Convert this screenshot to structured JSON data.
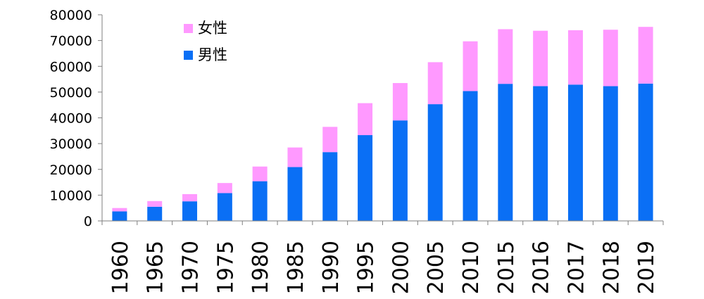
{
  "chart_data": {
    "type": "bar",
    "stacked": true,
    "categories": [
      "1960",
      "1965",
      "1970",
      "1975",
      "1980",
      "1985",
      "1990",
      "1995",
      "2000",
      "2005",
      "2010",
      "2015",
      "2016",
      "2017",
      "2018",
      "2019"
    ],
    "series": [
      {
        "name": "男性",
        "color": "#0a6ff5",
        "values": [
          3700,
          5500,
          7600,
          10800,
          15400,
          20900,
          26700,
          33300,
          39000,
          45300,
          50400,
          53200,
          52300,
          52900,
          52300,
          53300
        ]
      },
      {
        "name": "女性",
        "color": "#ff99ff",
        "values": [
          1300,
          2200,
          2800,
          3900,
          5700,
          7600,
          9800,
          12400,
          14500,
          16300,
          19300,
          21200,
          21500,
          21100,
          21900,
          22000
        ]
      }
    ],
    "ylim": [
      0,
      80000
    ],
    "yticks": [
      "0",
      "10000",
      "20000",
      "30000",
      "40000",
      "50000",
      "60000",
      "70000",
      "80000"
    ],
    "legend": {
      "position": "top-left",
      "entries": [
        {
          "label": "女性",
          "color": "#ff99ff"
        },
        {
          "label": "男性",
          "color": "#0a6ff5"
        }
      ]
    },
    "grid": false,
    "title": "",
    "xlabel": "",
    "ylabel": ""
  }
}
